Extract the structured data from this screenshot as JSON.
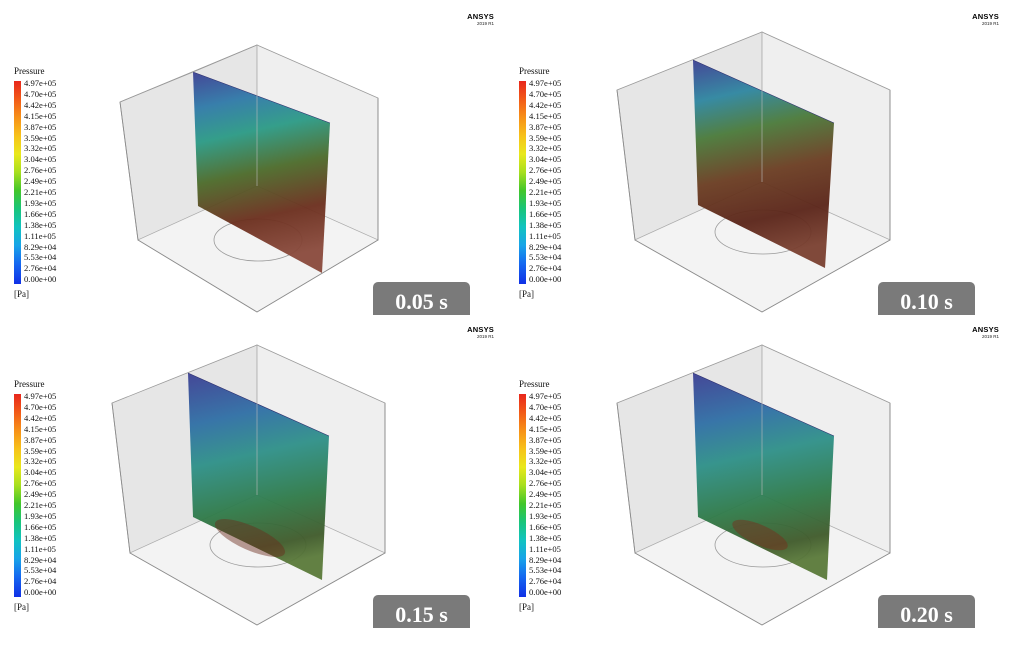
{
  "legend": {
    "title": "Pressure",
    "ticks": [
      "4.97e+05",
      "4.70e+05",
      "4.42e+05",
      "4.15e+05",
      "3.87e+05",
      "3.59e+05",
      "3.32e+05",
      "3.04e+05",
      "2.76e+05",
      "2.49e+05",
      "2.21e+05",
      "1.93e+05",
      "1.66e+05",
      "1.38e+05",
      "1.11e+05",
      "8.29e+04",
      "5.53e+04",
      "2.76e+04",
      "0.00e+00"
    ],
    "unit": "[Pa]"
  },
  "logo": {
    "name": "ANSYS",
    "version": "2019 R1"
  },
  "colors": {
    "badge": "#7a7a7a",
    "high": "#e8271c",
    "low": "#1030e6"
  },
  "panels": [
    {
      "time_label": "0.05 s"
    },
    {
      "time_label": "0.10 s"
    },
    {
      "time_label": "0.15 s"
    },
    {
      "time_label": "0.20 s"
    }
  ]
}
